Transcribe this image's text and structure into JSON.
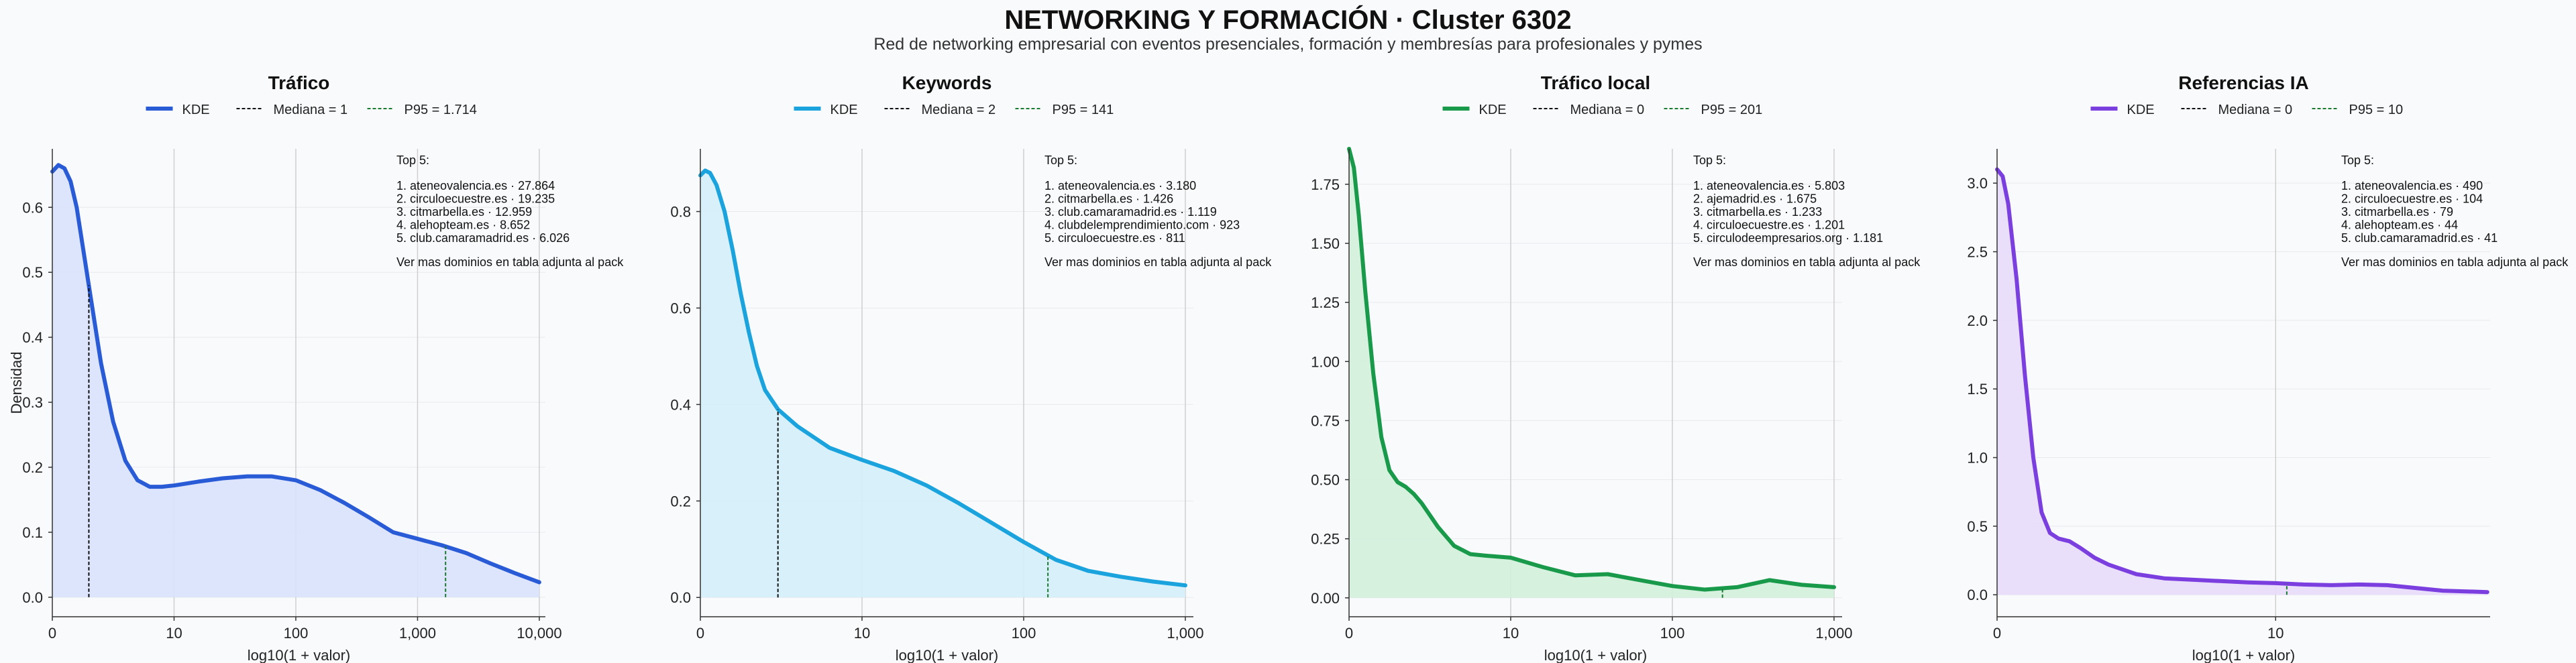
{
  "page": {
    "title": "NETWORKING Y FORMACIÓN · Cluster 6302",
    "subtitle": "Red de networking empresarial con eventos presenciales, formación y membresías para profesionales y pymes"
  },
  "chart_data": [
    {
      "type": "area",
      "title": "Tráfico",
      "xlabel": "log10(1 + valor)",
      "ylabel": "Densidad",
      "color": "#2a5bd7",
      "fill": "#d8e2fb",
      "xlim": [
        0,
        4.05
      ],
      "ylim": [
        -0.03,
        0.69
      ],
      "xticks": [
        0,
        1,
        2,
        3,
        4
      ],
      "xticklabels": [
        "0",
        "10",
        "100",
        "1,000",
        "10,000"
      ],
      "yticks": [
        0,
        0.1,
        0.2,
        0.3,
        0.4,
        0.5,
        0.6
      ],
      "yticklabels": [
        "0.0",
        "0.1",
        "0.2",
        "0.3",
        "0.4",
        "0.5",
        "0.6"
      ],
      "legend": {
        "kde": "KDE",
        "median": "Mediana = 1",
        "p95": "P95 = 1.714"
      },
      "median_x": 0.3,
      "p95_x": 3.23,
      "kde": {
        "x": [
          0,
          0.05,
          0.1,
          0.15,
          0.2,
          0.3,
          0.4,
          0.5,
          0.6,
          0.7,
          0.8,
          0.9,
          1.0,
          1.2,
          1.4,
          1.6,
          1.8,
          2.0,
          2.2,
          2.4,
          2.6,
          2.8,
          3.0,
          3.2,
          3.4,
          3.6,
          3.8,
          4.0
        ],
        "y": [
          0.655,
          0.665,
          0.66,
          0.64,
          0.6,
          0.48,
          0.36,
          0.27,
          0.21,
          0.18,
          0.17,
          0.17,
          0.172,
          0.178,
          0.183,
          0.186,
          0.186,
          0.18,
          0.165,
          0.145,
          0.123,
          0.1,
          0.09,
          0.08,
          0.068,
          0.052,
          0.037,
          0.023
        ]
      },
      "annotation": {
        "heading": "Top 5:",
        "items": [
          "1. ateneovalencia.es · 27.864",
          "2. circuloecuestre.es · 19.235",
          "3. citmarbella.es · 12.959",
          "4. alehopteam.es · 8.652",
          "5. club.camaramadrid.es · 6.026"
        ],
        "footer": "Ver mas dominios en tabla adjunta al pack"
      }
    },
    {
      "type": "area",
      "title": "Keywords",
      "xlabel": "log10(1 + valor)",
      "ylabel": "",
      "color": "#1aa3dd",
      "fill": "#d3eefa",
      "xlim": [
        0,
        3.05
      ],
      "ylim": [
        -0.04,
        0.93
      ],
      "xticks": [
        0,
        1,
        2,
        3
      ],
      "xticklabels": [
        "0",
        "10",
        "100",
        "1,000"
      ],
      "yticks": [
        0,
        0.2,
        0.4,
        0.6,
        0.8
      ],
      "yticklabels": [
        "0.0",
        "0.2",
        "0.4",
        "0.6",
        "0.8"
      ],
      "legend": {
        "kde": "KDE",
        "median": "Mediana = 2",
        "p95": "P95 = 141"
      },
      "median_x": 0.48,
      "p95_x": 2.15,
      "kde": {
        "x": [
          0,
          0.03,
          0.06,
          0.1,
          0.15,
          0.2,
          0.25,
          0.3,
          0.35,
          0.4,
          0.48,
          0.6,
          0.8,
          1.0,
          1.2,
          1.4,
          1.6,
          1.8,
          2.0,
          2.2,
          2.4,
          2.6,
          2.8,
          3.0
        ],
        "y": [
          0.875,
          0.885,
          0.88,
          0.855,
          0.8,
          0.72,
          0.63,
          0.55,
          0.48,
          0.43,
          0.39,
          0.355,
          0.31,
          0.285,
          0.262,
          0.232,
          0.195,
          0.155,
          0.115,
          0.078,
          0.055,
          0.043,
          0.033,
          0.025
        ]
      },
      "annotation": {
        "heading": "Top 5:",
        "items": [
          "1. ateneovalencia.es · 3.180",
          "2. citmarbella.es · 1.426",
          "3. club.camaramadrid.es · 1.119",
          "4. clubdelemprendimiento.com · 923",
          "5. circuloecuestre.es · 811"
        ],
        "footer": "Ver mas dominios en tabla adjunta al pack"
      }
    },
    {
      "type": "area",
      "title": "Tráfico local",
      "xlabel": "log10(1 + valor)",
      "ylabel": "",
      "color": "#199a4b",
      "fill": "#d3efdc",
      "xlim": [
        0,
        3.05
      ],
      "ylim": [
        -0.08,
        1.9
      ],
      "xticks": [
        0,
        1,
        2,
        3
      ],
      "xticklabels": [
        "0",
        "10",
        "100",
        "1,000"
      ],
      "yticks": [
        0,
        0.25,
        0.5,
        0.75,
        1.0,
        1.25,
        1.5,
        1.75
      ],
      "yticklabels": [
        "0.00",
        "0.25",
        "0.50",
        "0.75",
        "1.00",
        "1.25",
        "1.50",
        "1.75"
      ],
      "legend": {
        "kde": "KDE",
        "median": "Mediana = 0",
        "p95": "P95 = 201"
      },
      "median_x": 0.0,
      "p95_x": 2.31,
      "kde": {
        "x": [
          0,
          0.03,
          0.06,
          0.1,
          0.15,
          0.2,
          0.25,
          0.3,
          0.35,
          0.4,
          0.45,
          0.55,
          0.65,
          0.75,
          0.85,
          1.0,
          1.2,
          1.4,
          1.6,
          1.8,
          2.0,
          2.2,
          2.4,
          2.6,
          2.8,
          3.0
        ],
        "y": [
          1.9,
          1.82,
          1.62,
          1.3,
          0.95,
          0.68,
          0.54,
          0.49,
          0.47,
          0.44,
          0.4,
          0.3,
          0.22,
          0.185,
          0.178,
          0.17,
          0.13,
          0.095,
          0.1,
          0.075,
          0.05,
          0.035,
          0.045,
          0.075,
          0.055,
          0.045
        ]
      },
      "annotation": {
        "heading": "Top 5:",
        "items": [
          "1. ateneovalencia.es · 5.803",
          "2. ajemadrid.es · 1.675",
          "3. citmarbella.es · 1.233",
          "4. circuloecuestre.es · 1.201",
          "5. circulodeempresarios.org · 1.181"
        ],
        "footer": "Ver mas dominios en tabla adjunta al pack"
      }
    },
    {
      "type": "area",
      "title": "Referencias IA",
      "xlabel": "log10(1 + valor)",
      "ylabel": "",
      "color": "#7b3fe0",
      "fill": "#e8dcfb",
      "xlim": [
        0,
        1.77
      ],
      "ylim": [
        -0.16,
        3.25
      ],
      "xticks": [
        0,
        1
      ],
      "xticklabels": [
        "0",
        "10"
      ],
      "yticks": [
        0,
        0.5,
        1.0,
        1.5,
        2.0,
        2.5,
        3.0
      ],
      "yticklabels": [
        "0.0",
        "0.5",
        "1.0",
        "1.5",
        "2.0",
        "2.5",
        "3.0"
      ],
      "legend": {
        "kde": "KDE",
        "median": "Mediana = 0",
        "p95": "P95 = 10"
      },
      "median_x": 0.0,
      "p95_x": 1.04,
      "kde": {
        "x": [
          0,
          0.02,
          0.04,
          0.07,
          0.1,
          0.13,
          0.16,
          0.19,
          0.22,
          0.26,
          0.3,
          0.35,
          0.4,
          0.5,
          0.6,
          0.7,
          0.8,
          0.9,
          1.0,
          1.1,
          1.2,
          1.3,
          1.4,
          1.5,
          1.6,
          1.76
        ],
        "y": [
          3.1,
          3.05,
          2.85,
          2.3,
          1.6,
          1.0,
          0.6,
          0.45,
          0.41,
          0.39,
          0.34,
          0.27,
          0.22,
          0.15,
          0.12,
          0.11,
          0.1,
          0.09,
          0.085,
          0.075,
          0.07,
          0.075,
          0.07,
          0.05,
          0.03,
          0.02
        ]
      },
      "annotation": {
        "heading": "Top 5:",
        "items": [
          "1. ateneovalencia.es · 490",
          "2. circuloecuestre.es · 104",
          "3. citmarbella.es · 79",
          "4. alehopteam.es · 44",
          "5. club.camaramadrid.es · 41"
        ],
        "footer": "Ver mas dominios en tabla adjunta al pack"
      }
    }
  ]
}
